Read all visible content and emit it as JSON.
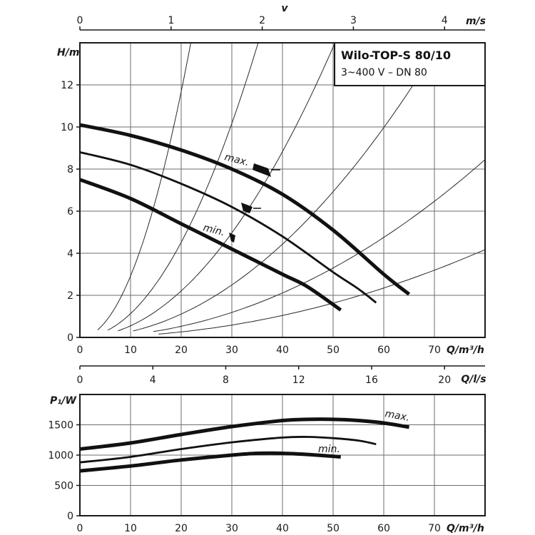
{
  "chart_data": [
    {
      "type": "line",
      "title": "Wilo-TOP-S 80/10",
      "subtitle": "3~400 V – DN 80",
      "xlabel": "Q/m³/h",
      "ylabel": "H/m",
      "xlim": [
        0,
        80
      ],
      "ylim": [
        0,
        14
      ],
      "x_ticks": [
        0,
        10,
        20,
        30,
        40,
        50,
        60,
        70
      ],
      "y_ticks": [
        0,
        2,
        4,
        6,
        8,
        10,
        12
      ],
      "grid": true,
      "top_axis_v": {
        "label": "v",
        "unit": "m/s",
        "ticks": [
          0,
          1,
          2,
          3,
          4
        ],
        "q_per_unit": 18.0
      },
      "bottom_axis_ls": {
        "label": "Q/l/s",
        "ticks": [
          0,
          4,
          8,
          12,
          16,
          20
        ]
      },
      "series": [
        {
          "name": "max.",
          "x": [
            0,
            10,
            20,
            30,
            40,
            50,
            60,
            65
          ],
          "values": [
            10.1,
            9.6,
            8.9,
            8.0,
            6.8,
            5.1,
            3.0,
            2.05
          ]
        },
        {
          "name": "",
          "x": [
            0,
            10,
            20,
            30,
            40,
            50,
            55,
            58.5
          ],
          "values": [
            8.8,
            8.2,
            7.3,
            6.2,
            4.8,
            3.1,
            2.3,
            1.65
          ]
        },
        {
          "name": "min.",
          "x": [
            0,
            10,
            20,
            30,
            40,
            45,
            51.5
          ],
          "values": [
            7.5,
            6.6,
            5.4,
            4.2,
            3.0,
            2.4,
            1.3
          ]
        }
      ],
      "system_curves": [
        {
          "k": 0.0292,
          "x_start": 3.5
        },
        {
          "k": 0.0113,
          "x_start": 5.5
        },
        {
          "k": 0.00552,
          "x_start": 7.5
        },
        {
          "k": 0.00277,
          "x_start": 10.5
        },
        {
          "k": 0.00132,
          "x_start": 14.5
        },
        {
          "k": 0.000652,
          "x_start": 15.5
        }
      ],
      "annotations": [
        "max.",
        "min."
      ]
    },
    {
      "type": "line",
      "xlabel": "Q/m³/h",
      "ylabel": "P₁/W",
      "xlim": [
        0,
        80
      ],
      "ylim": [
        0,
        2000
      ],
      "x_ticks": [
        0,
        10,
        20,
        30,
        40,
        50,
        60,
        70
      ],
      "y_ticks": [
        0,
        500,
        1000,
        1500
      ],
      "grid": true,
      "series": [
        {
          "name": "max.",
          "x": [
            0,
            10,
            20,
            30,
            40,
            45,
            50,
            55,
            60,
            65
          ],
          "values": [
            1100,
            1200,
            1340,
            1470,
            1570,
            1590,
            1590,
            1570,
            1530,
            1460
          ]
        },
        {
          "name": "",
          "x": [
            0,
            10,
            20,
            30,
            40,
            45,
            50,
            55,
            58.5
          ],
          "values": [
            880,
            970,
            1100,
            1210,
            1290,
            1300,
            1280,
            1240,
            1180
          ]
        },
        {
          "name": "min.",
          "x": [
            0,
            10,
            20,
            30,
            35,
            40,
            45,
            51.5
          ],
          "values": [
            740,
            820,
            920,
            1000,
            1030,
            1030,
            1010,
            970
          ]
        }
      ],
      "annotations": [
        "max.",
        "min."
      ]
    }
  ]
}
